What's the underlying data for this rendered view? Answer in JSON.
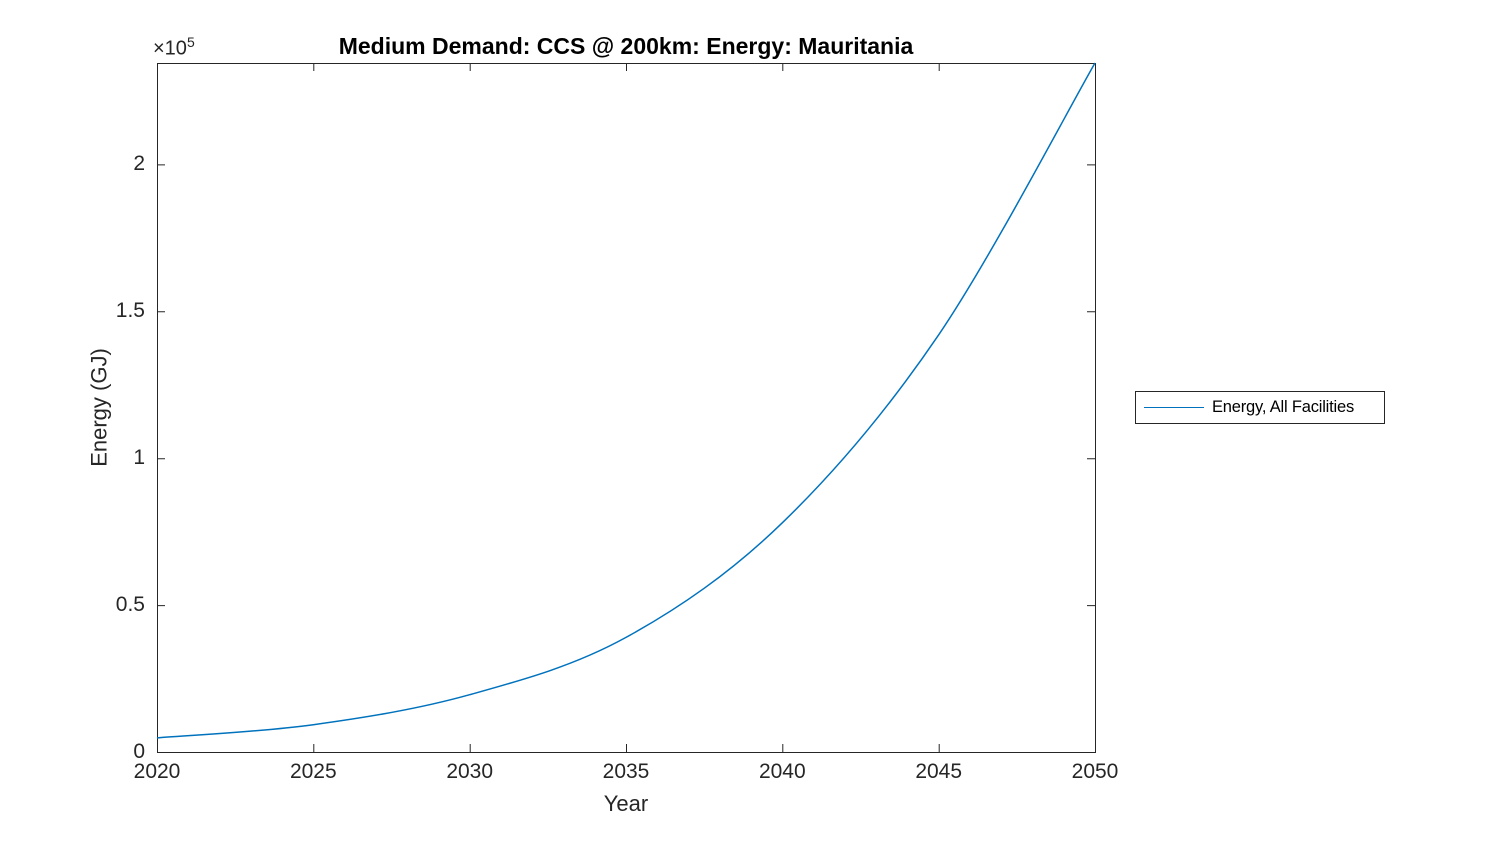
{
  "figure": {
    "background": "#ffffff"
  },
  "chart_data": {
    "type": "line",
    "title": "Medium Demand: CCS @ 200km: Energy: Mauritania",
    "xlabel": "Year",
    "ylabel": "Energy (GJ)",
    "y_axis_multiplier_base": "×10",
    "y_axis_multiplier_exponent": "5",
    "xlim": [
      2020,
      2050
    ],
    "ylim": [
      0,
      234500
    ],
    "x_tick_values": [
      2020,
      2025,
      2030,
      2035,
      2040,
      2045,
      2050
    ],
    "x_tick_labels": [
      "2020",
      "2025",
      "2030",
      "2035",
      "2040",
      "2045",
      "2050"
    ],
    "y_tick_values": [
      0,
      50000,
      100000,
      150000,
      200000
    ],
    "y_tick_labels": [
      "0",
      "0.5",
      "1",
      "1.5",
      "2"
    ],
    "grid": false,
    "box": true,
    "tick_direction": "in",
    "axis_color": "#262626",
    "legend": {
      "position": "right-outside",
      "entries": [
        {
          "label": "Energy, All Facilities",
          "color": "#0072BD"
        }
      ]
    },
    "series": [
      {
        "name": "Energy, All Facilities",
        "color": "#0072BD",
        "x": [
          2020,
          2025,
          2030,
          2035,
          2040,
          2045,
          2050
        ],
        "values": [
          4800,
          9300,
          19500,
          39000,
          78000,
          142000,
          234500
        ]
      }
    ]
  }
}
